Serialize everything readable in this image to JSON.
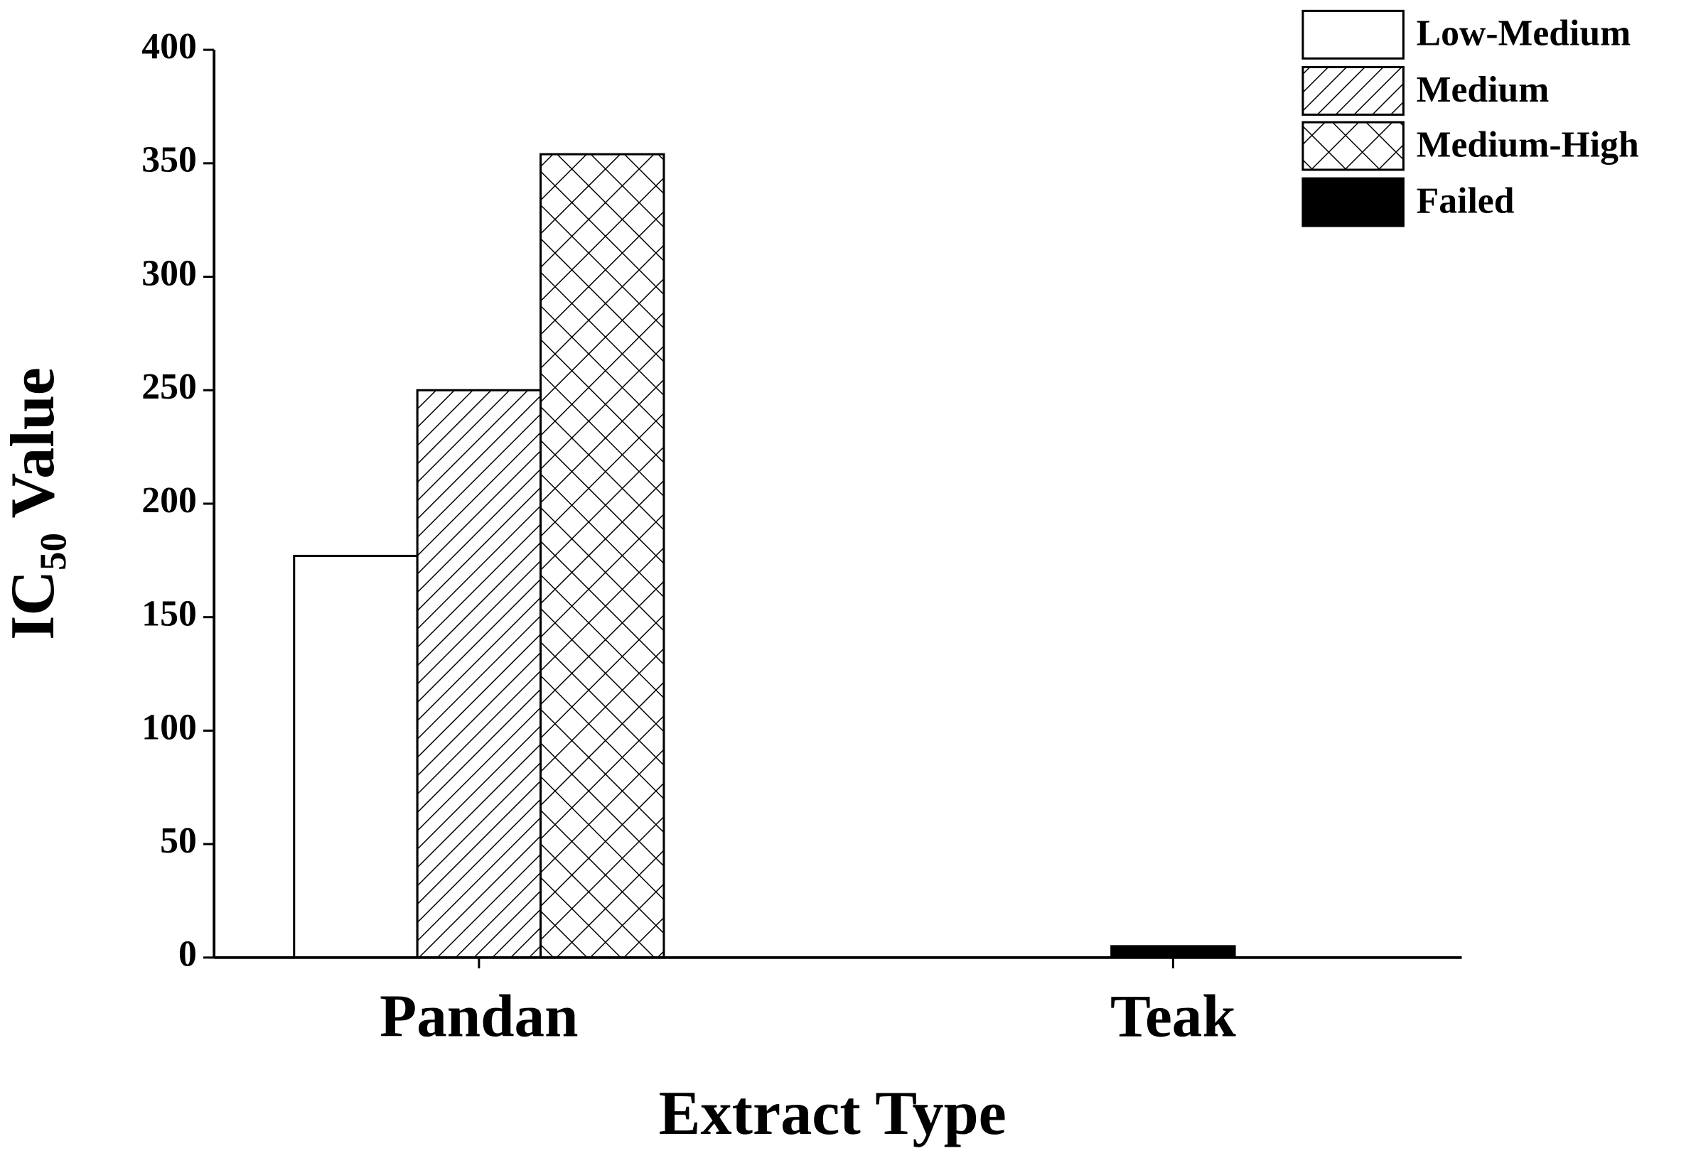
{
  "chart_data": {
    "type": "bar",
    "x_label": "Extract Type",
    "y_label": "IC₅₀ Value",
    "categories": [
      "Pandan",
      "Teak"
    ],
    "series": [
      {
        "name": "Low-Medium",
        "color": "#ffffff",
        "pattern": "solid",
        "values": [
          177,
          null
        ]
      },
      {
        "name": "Medium",
        "color": "#ffffff",
        "pattern": "diagonal",
        "values": [
          250,
          null
        ]
      },
      {
        "name": "Medium-High",
        "color": "#ffffff",
        "pattern": "crosshatch",
        "values": [
          354,
          null
        ]
      },
      {
        "name": "Failed",
        "color": "#000000",
        "pattern": "solid",
        "values": [
          null,
          5
        ]
      }
    ],
    "ylim": [
      0,
      400
    ],
    "yticks": [
      0,
      50,
      100,
      150,
      200,
      250,
      300,
      350,
      400
    ],
    "grid": false,
    "legend": "top-right"
  }
}
